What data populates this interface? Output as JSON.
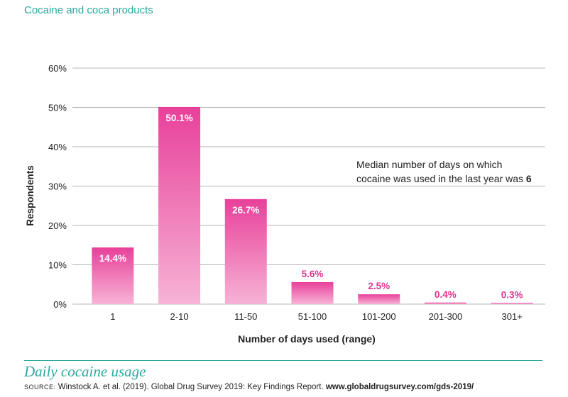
{
  "header": {
    "section": "Cocaine and coca products"
  },
  "chart_data": {
    "type": "bar",
    "title": "Daily cocaine usage",
    "xlabel": "Number of days used (range)",
    "ylabel": "Respondents",
    "categories": [
      "1",
      "2-10",
      "11-50",
      "51-100",
      "101-200",
      "201-300",
      "301+"
    ],
    "values": [
      14.4,
      50.1,
      26.7,
      5.6,
      2.5,
      0.4,
      0.3
    ],
    "value_labels": [
      "14.4%",
      "50.1%",
      "26.7%",
      "5.6%",
      "2.5%",
      "0.4%",
      "0.3%"
    ],
    "ylim": [
      0,
      60
    ],
    "yticks": [
      0,
      10,
      20,
      30,
      40,
      50,
      60
    ],
    "ytick_labels": [
      "0%",
      "10%",
      "20%",
      "30%",
      "40%",
      "50%",
      "60%"
    ],
    "grid": true,
    "colors": {
      "bar_top": "#e8409a",
      "bar_bottom": "#f7b3d6",
      "label_inside": "#ffffff",
      "label_outside": "#e0348f",
      "grid": "#b5b5b5"
    }
  },
  "annotation": {
    "line1": "Median number of days on which",
    "line2_prefix": "cocaine was used in the last year was ",
    "line2_value": "6"
  },
  "footer": {
    "title": "Daily cocaine usage",
    "source_tag": "SOURCE:",
    "source_text": " Winstock A. et al. (2019). Global Drug Survey 2019: Key Findings Report. ",
    "source_url": "www.globaldrugsurvey.com/gds-2019/"
  }
}
